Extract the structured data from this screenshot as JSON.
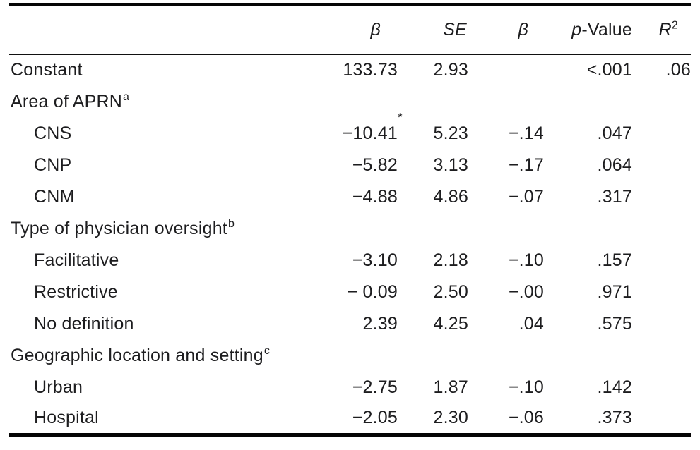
{
  "table": {
    "header": {
      "beta_unstd": "β",
      "se": "SE",
      "beta_std": "β",
      "p_italic": "p",
      "p_rest": "-Value",
      "r": "R",
      "r_sup": "2"
    },
    "rows": [
      {
        "label": "Constant",
        "values": {
          "b": "133.73",
          "se": "2.93",
          "beta": "",
          "p": "<.001",
          "r2": ".06"
        }
      },
      {
        "label": "Area of APRN",
        "label_sup": "a",
        "values": {
          "b": "",
          "se": "",
          "beta": "",
          "p": "",
          "r2": ""
        }
      },
      {
        "label": "CNS",
        "values": {
          "b": "−10.41",
          "b_star": "*",
          "se": "5.23",
          "beta": "−.14",
          "p": ".047",
          "r2": ""
        }
      },
      {
        "label": "CNP",
        "values": {
          "b": "−5.82",
          "se": "3.13",
          "beta": "−.17",
          "p": ".064",
          "r2": ""
        }
      },
      {
        "label": "CNM",
        "values": {
          "b": "−4.88",
          "se": "4.86",
          "beta": "−.07",
          "p": ".317",
          "r2": ""
        }
      },
      {
        "label": "Type of physician oversight",
        "label_sup": "b",
        "values": {
          "b": "",
          "se": "",
          "beta": "",
          "p": "",
          "r2": ""
        }
      },
      {
        "label": "Facilitative",
        "values": {
          "b": "−3.10",
          "se": "2.18",
          "beta": "−.10",
          "p": ".157",
          "r2": ""
        }
      },
      {
        "label": "Restrictive",
        "values": {
          "b": "− 0.09",
          "se": "2.50",
          "beta": "−.00",
          "p": ".971",
          "r2": ""
        }
      },
      {
        "label": "No definition",
        "values": {
          "b": "2.39",
          "se": "4.25",
          "beta": ".04",
          "p": ".575",
          "r2": ""
        }
      },
      {
        "label": "Geographic location and setting",
        "label_sup": "c",
        "values": {
          "b": "",
          "se": "",
          "beta": "",
          "p": "",
          "r2": ""
        }
      },
      {
        "label": "Urban",
        "values": {
          "b": "−2.75",
          "se": "1.87",
          "beta": "−.10",
          "p": ".142",
          "r2": ""
        }
      },
      {
        "label": "Hospital",
        "values": {
          "b": "−2.05",
          "se": "2.30",
          "beta": "−.06",
          "p": ".373",
          "r2": ""
        }
      }
    ]
  }
}
